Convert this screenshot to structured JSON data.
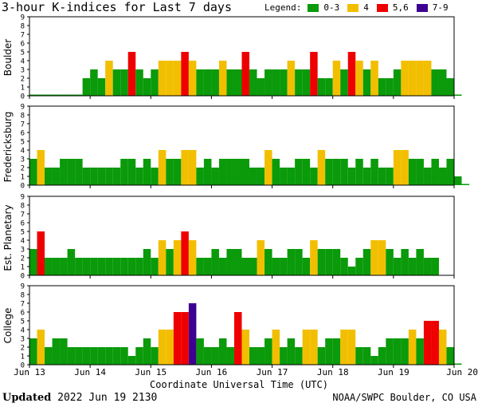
{
  "header": {
    "title": "3-hour K-indices for Last 7 days",
    "legend_label": "Legend:",
    "legend": [
      {
        "label": "0-3",
        "color": "#0a9a0a"
      },
      {
        "label": "4",
        "color": "#f2bf00"
      },
      {
        "label": "5,6",
        "color": "#ee0000"
      },
      {
        "label": "7-9",
        "color": "#3e0090"
      }
    ]
  },
  "chart_data": {
    "type": "bar",
    "xlabel": "Coordinate Universal Time (UTC)",
    "x_ticks": [
      "Jun 13",
      "Jun 14",
      "Jun 15",
      "Jun 16",
      "Jun 17",
      "Jun 18",
      "Jun 19",
      "Jun 20"
    ],
    "ylim": [
      0,
      9
    ],
    "y_ticks": [
      0,
      1,
      2,
      3,
      4,
      5,
      6,
      7,
      8,
      9
    ],
    "bins_per_day": 8,
    "color_rule": {
      "0-3": "#0a9a0a",
      "4": "#f2bf00",
      "5-6": "#ee0000",
      "7-9": "#3e0090"
    },
    "series": [
      {
        "name": "Boulder",
        "values": [
          0,
          0,
          0,
          0,
          0,
          0,
          0,
          2,
          3,
          2,
          4,
          3,
          3,
          5,
          3,
          2,
          3,
          4,
          4,
          4,
          5,
          4,
          3,
          3,
          3,
          4,
          3,
          3,
          5,
          3,
          2,
          3,
          3,
          3,
          4,
          3,
          3,
          5,
          2,
          2,
          4,
          3,
          5,
          4,
          3,
          4,
          2,
          2,
          3,
          4,
          4,
          4,
          4,
          3,
          3,
          2,
          0
        ]
      },
      {
        "name": "Fredericksburg",
        "values": [
          3,
          4,
          2,
          2,
          3,
          3,
          3,
          2,
          2,
          2,
          2,
          2,
          3,
          3,
          2,
          3,
          2,
          4,
          3,
          3,
          4,
          4,
          2,
          3,
          2,
          3,
          3,
          3,
          3,
          2,
          2,
          4,
          3,
          2,
          2,
          3,
          3,
          2,
          4,
          3,
          3,
          3,
          2,
          3,
          2,
          3,
          2,
          2,
          4,
          4,
          3,
          3,
          2,
          3,
          2,
          3,
          1,
          0
        ]
      },
      {
        "name": "Est. Planetary",
        "values": [
          3,
          5,
          2,
          2,
          2,
          3,
          2,
          2,
          2,
          2,
          2,
          2,
          2,
          2,
          2,
          3,
          2,
          4,
          3,
          4,
          5,
          4,
          2,
          2,
          3,
          2,
          3,
          3,
          2,
          2,
          4,
          3,
          2,
          2,
          3,
          3,
          2,
          4,
          3,
          3,
          3,
          2,
          1,
          2,
          3,
          4,
          4,
          3,
          2,
          3,
          2,
          3,
          2,
          2
        ]
      },
      {
        "name": "College",
        "values": [
          3,
          4,
          2,
          3,
          3,
          2,
          2,
          2,
          2,
          2,
          2,
          2,
          2,
          1,
          2,
          3,
          2,
          4,
          4,
          6,
          6,
          7,
          3,
          2,
          2,
          3,
          2,
          6,
          4,
          2,
          2,
          3,
          4,
          2,
          3,
          2,
          4,
          4,
          2,
          3,
          3,
          4,
          4,
          2,
          2,
          1,
          2,
          3,
          3,
          3,
          4,
          3,
          5,
          5,
          4,
          2,
          0
        ]
      }
    ]
  },
  "footer": {
    "updated_label": "Updated",
    "updated_time": "2022 Jun 19 2130",
    "source": "NOAA/SWPC Boulder, CO USA"
  }
}
